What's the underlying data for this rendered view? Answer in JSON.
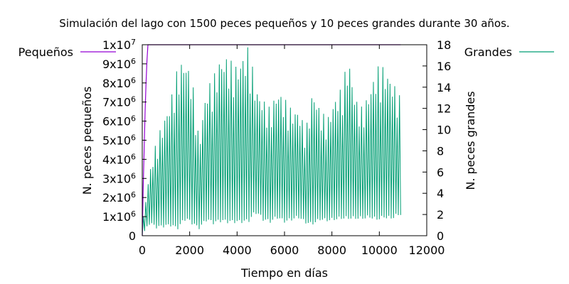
{
  "chart_data": {
    "type": "line",
    "title": "Simulación del lago con 1500 peces pequeños y 10 peces grandes durante 30 años.",
    "xlabel": "Tiempo en días",
    "ylabel": "N. peces pequeños",
    "y2label": "N. peces grandes",
    "xlim": [
      0,
      12000
    ],
    "ylim": [
      0,
      10000000
    ],
    "y2lim": [
      0,
      18
    ],
    "x_ticks": [
      0,
      2000,
      4000,
      6000,
      8000,
      10000,
      12000
    ],
    "x_tick_labels": [
      "0",
      "2000",
      "4000",
      "6000",
      "8000",
      "10000",
      "12000"
    ],
    "y_ticks": [
      0,
      1000000,
      2000000,
      3000000,
      4000000,
      5000000,
      6000000,
      7000000,
      8000000,
      9000000,
      10000000
    ],
    "y_tick_labels": [
      {
        "base": "0",
        "exp": ""
      },
      {
        "base": "1x10",
        "exp": "6"
      },
      {
        "base": "2x10",
        "exp": "6"
      },
      {
        "base": "3x10",
        "exp": "6"
      },
      {
        "base": "4x10",
        "exp": "6"
      },
      {
        "base": "5x10",
        "exp": "6"
      },
      {
        "base": "6x10",
        "exp": "6"
      },
      {
        "base": "7x10",
        "exp": "6"
      },
      {
        "base": "8x10",
        "exp": "6"
      },
      {
        "base": "9x10",
        "exp": "6"
      },
      {
        "base": "1x10",
        "exp": "7"
      }
    ],
    "y2_ticks": [
      0,
      2,
      4,
      6,
      8,
      10,
      12,
      14,
      16,
      18
    ],
    "y2_tick_labels": [
      "0",
      "2",
      "4",
      "6",
      "8",
      "10",
      "12",
      "14",
      "16",
      "18"
    ],
    "grid": false,
    "series": [
      {
        "name": "Pequeños",
        "axis": "left",
        "color": "#9400d3",
        "x": [
          0,
          40,
          80,
          120,
          160,
          200,
          240,
          280,
          320,
          10900
        ],
        "y": [
          0,
          2500000,
          4500000,
          6500000,
          8000000,
          9200000,
          10000000,
          10000000,
          10000000,
          10000000
        ]
      },
      {
        "name": "Grandes",
        "axis": "right",
        "color": "#009e73",
        "period_days": 100,
        "x_start": 0,
        "x_end": 10900,
        "envelope_x": [
          0,
          300,
          600,
          900,
          1200,
          1500,
          1800,
          2100,
          2400,
          2700,
          3000,
          3300,
          3600,
          3900,
          4200,
          4500,
          4800,
          5100,
          5400,
          5700,
          6000,
          6300,
          6600,
          6900,
          7200,
          7500,
          7800,
          8100,
          8400,
          8700,
          9000,
          9300,
          9600,
          9900,
          10200,
          10500,
          10900
        ],
        "envelope_max": [
          1,
          6,
          9,
          11,
          13,
          16,
          17,
          15,
          9,
          14,
          15,
          17,
          17,
          16,
          17,
          18,
          14,
          13,
          12,
          14,
          13,
          12,
          12,
          10,
          14,
          12,
          11,
          13,
          14,
          17,
          13,
          12,
          14,
          16,
          16,
          15,
          13
        ],
        "envelope_min": [
          0,
          1.2,
          0.8,
          0.9,
          1.0,
          0.7,
          1.6,
          1.2,
          0.7,
          1.5,
          1.2,
          1.4,
          1.3,
          1.3,
          1.3,
          1.4,
          2.2,
          1.5,
          1.3,
          1.7,
          1.3,
          1.5,
          1.7,
          1.2,
          1.1,
          1.5,
          1.4,
          1.5,
          1.6,
          1.6,
          1.6,
          1.6,
          1.7,
          1.5,
          1.7,
          1.6,
          2.0
        ]
      }
    ],
    "legend": "outside-top"
  }
}
